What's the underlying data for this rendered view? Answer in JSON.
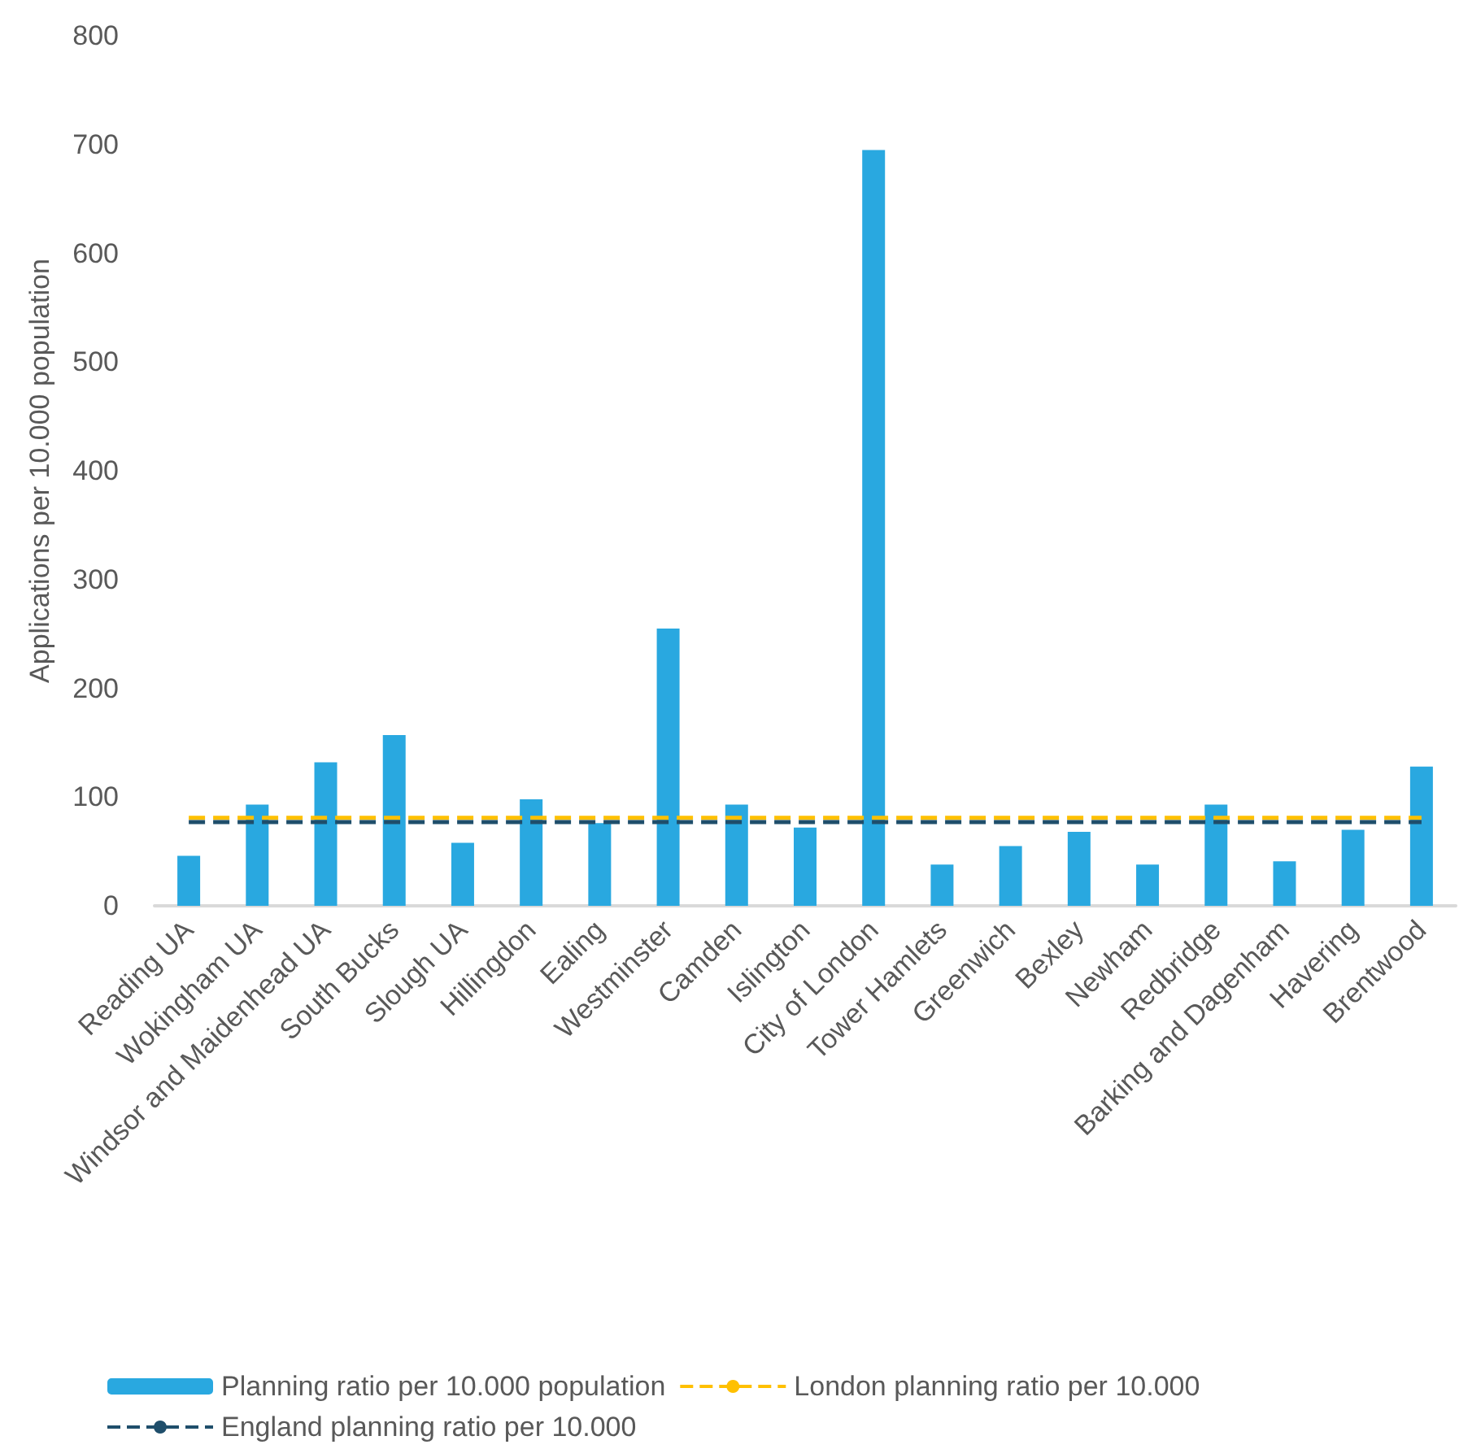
{
  "chart_data": {
    "type": "bar",
    "ylabel": "Applications per 10.000 population",
    "categories": [
      "Reading UA",
      "Wokingham UA",
      "Windsor and Maidenhead UA",
      "South Bucks",
      "Slough UA",
      "Hillingdon",
      "Ealing",
      "Westminster",
      "Camden",
      "Islington",
      "City of London",
      "Tower Hamlets",
      "Greenwich",
      "Bexley",
      "Newham",
      "Redbridge",
      "Barking and Dagenham",
      "Havering",
      "Brentwood"
    ],
    "series": [
      {
        "name": "Planning ratio per 10.000 population",
        "color": "#29a8e0",
        "values": [
          46,
          93,
          132,
          157,
          58,
          98,
          76,
          255,
          93,
          72,
          695,
          38,
          55,
          68,
          38,
          93,
          41,
          70,
          128
        ]
      },
      {
        "name": "London planning ratio per 10.000",
        "type": "line",
        "color": "#ffc000",
        "line_style": "dashed",
        "values": [
          81,
          81,
          81,
          81,
          81,
          81,
          81,
          81,
          81,
          81,
          81,
          81,
          81,
          81,
          81,
          81,
          81,
          81,
          81
        ]
      },
      {
        "name": "England planning ratio per 10.000",
        "type": "line",
        "color": "#1f4e6b",
        "line_style": "dashed",
        "values": [
          77,
          77,
          77,
          77,
          77,
          77,
          77,
          77,
          77,
          77,
          77,
          77,
          77,
          77,
          77,
          77,
          77,
          77,
          77
        ]
      }
    ],
    "ylim": [
      0,
      800
    ],
    "yticks": [
      0,
      100,
      200,
      300,
      400,
      500,
      600,
      700,
      800
    ],
    "grid": false,
    "legend": "bottom",
    "marker": "none"
  }
}
